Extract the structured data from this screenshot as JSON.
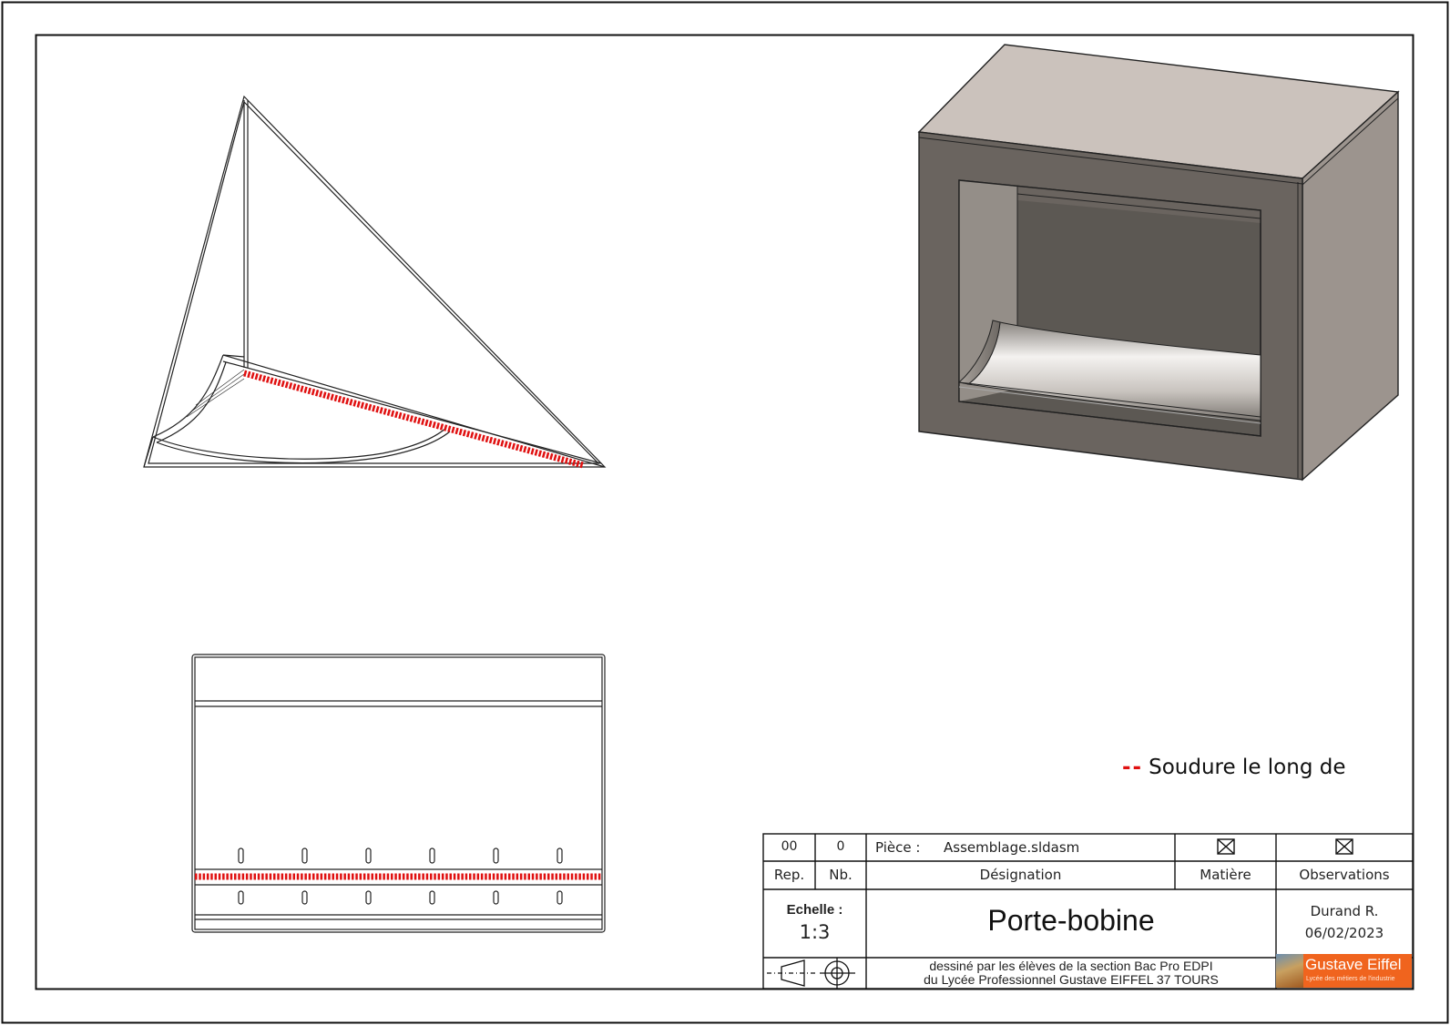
{
  "legend": {
    "symbol": "--",
    "text": "Soudure le long de",
    "color": "#e01010"
  },
  "title_block": {
    "row1": {
      "rep": "00",
      "nb": "0",
      "piece_label": "Pièce :",
      "piece_value": "Assemblage.sldasm",
      "matiere_icon": "crossed-box-icon",
      "observations_icon": "crossed-box-icon"
    },
    "headers": {
      "rep": "Rep.",
      "nb": "Nb.",
      "designation": "Désignation",
      "matiere": "Matière",
      "observations": "Observations"
    },
    "echelle_label": "Echelle :",
    "echelle_value": "1:3",
    "title": "Porte-bobine",
    "author": "Durand R.",
    "date": "06/02/2023",
    "projection_icon": "first-angle-projection-icon",
    "credit_line1": "dessiné par les élèves de la section Bac Pro EDPI",
    "credit_line2": "du Lycée Professionnel Gustave EIFFEL 37 TOURS",
    "logo_name": "Gustave Eiffel",
    "logo_sub": "Lycée des métiers de l'industrie",
    "logo_color": "#f0641e"
  },
  "colors": {
    "weld": "#e01010",
    "box_top": "#cbc2bc",
    "box_side": "#9c948e",
    "box_front": "#6a645f",
    "box_inner": "#5c5853",
    "line": "#222222"
  }
}
